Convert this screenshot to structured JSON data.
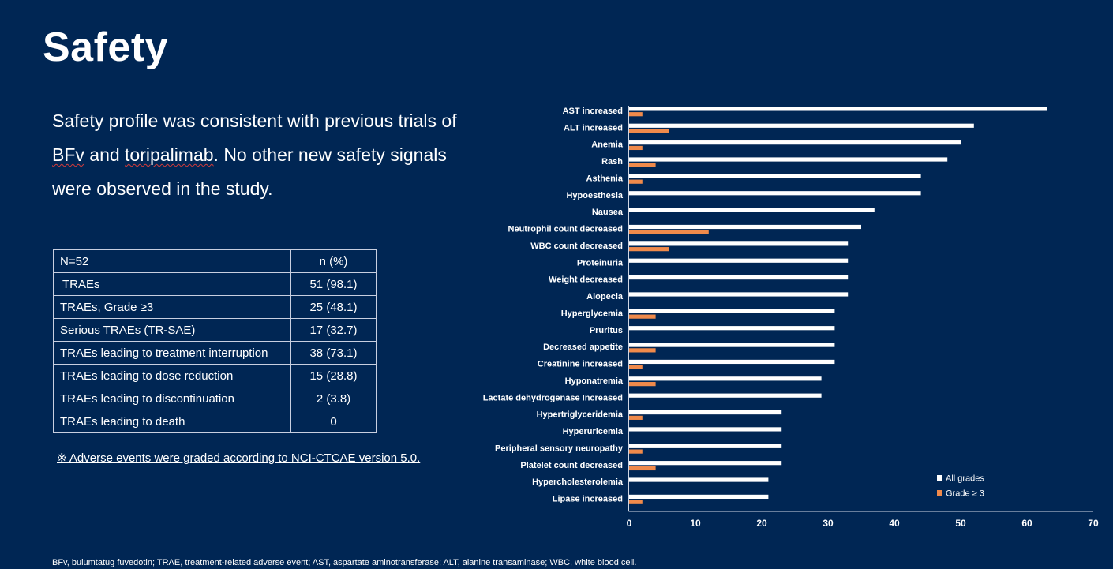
{
  "slide": {
    "title": "Safety",
    "intro_parts": [
      "Safety profile was consistent with previous trials of ",
      "BFv",
      " and ",
      "toripalimab",
      ". No other new safety signals were observed in the study."
    ],
    "note": "※ Adverse events were graded according to NCI-CTCAE version 5.0.",
    "footnote": "BFv, bulumtatug fuvedotin; TRAE, treatment-related adverse event; AST, aspartate aminotransferase; ALT, alanine transaminase; WBC, white blood cell."
  },
  "table": {
    "header": [
      "N=52",
      "n (%)"
    ],
    "rows": [
      [
        "TRAEs",
        "51 (98.1)"
      ],
      [
        "TRAEs, Grade ≥3",
        "25 (48.1)"
      ],
      [
        "Serious TRAEs (TR-SAE)",
        "17 (32.7)"
      ],
      [
        "TRAEs leading to treatment interruption",
        "38 (73.1)"
      ],
      [
        "TRAEs leading to dose reduction",
        "15 (28.8)"
      ],
      [
        "TRAEs leading to discontinuation",
        "2 (3.8)"
      ],
      [
        "TRAEs leading to death",
        "0"
      ]
    ]
  },
  "chart_data": {
    "type": "bar",
    "orientation": "horizontal",
    "categories": [
      "AST increased",
      "ALT increased",
      "Anemia",
      "Rash",
      "Asthenia",
      "Hypoesthesia",
      "Nausea",
      "Neutrophil count decreased",
      "WBC count decreased",
      "Proteinuria",
      "Weight decreased",
      "Alopecia",
      "Hyperglycemia",
      "Pruritus",
      "Decreased appetite",
      "Creatinine increased",
      "Hyponatremia",
      "Lactate dehydrogenase Increased",
      "Hypertriglyceridemia",
      "Hyperuricemia",
      "Peripheral sensory neuropathy",
      "Platelet count decreased",
      "Hypercholesterolemia",
      "Lipase increased"
    ],
    "series": [
      {
        "name": "All grades",
        "color": "#ffffff",
        "values": [
          63,
          52,
          50,
          48,
          44,
          44,
          37,
          35,
          33,
          33,
          33,
          33,
          31,
          31,
          31,
          31,
          29,
          29,
          23,
          23,
          23,
          23,
          21,
          21
        ]
      },
      {
        "name": "Grade ≥ 3",
        "color": "#f08a4b",
        "values": [
          2,
          6,
          2,
          4,
          2,
          0,
          0,
          12,
          6,
          0,
          0,
          0,
          4,
          0,
          4,
          2,
          4,
          0,
          2,
          0,
          2,
          4,
          0,
          2
        ]
      }
    ],
    "xlim": [
      0,
      70
    ],
    "xticks": [
      0,
      10,
      20,
      30,
      40,
      50,
      60,
      70
    ],
    "grid": false,
    "legend_position": "bottom-right"
  }
}
